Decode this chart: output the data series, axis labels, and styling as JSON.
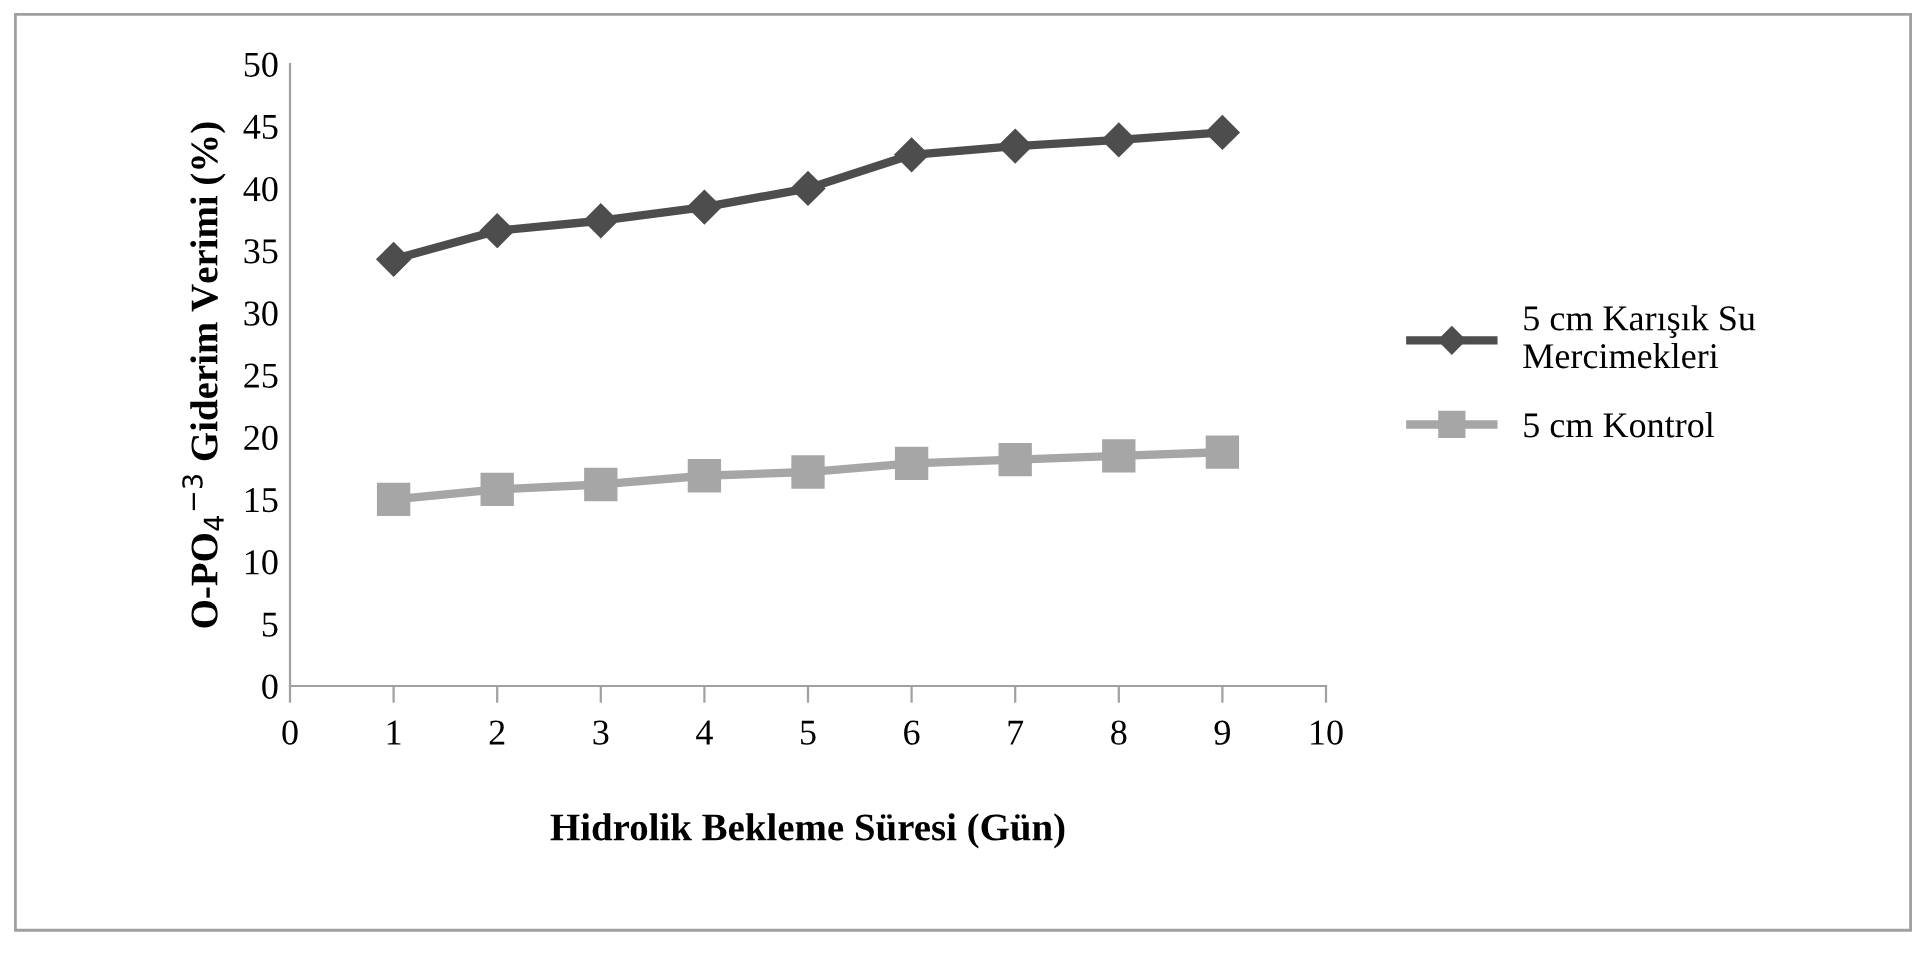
{
  "chart_data": {
    "type": "line",
    "xlabel": "Hidrolik Bekleme Süresi (Gün)",
    "ylabel": "O-PO$_{4}$$^{−3}$ Giderim Verimi (%)",
    "x": [
      1,
      2,
      3,
      4,
      5,
      6,
      7,
      8,
      9
    ],
    "series": [
      {
        "name": "5 cm Karışık Su\nMercimekleri",
        "color": "#4d4d4d",
        "marker": "diamond",
        "values": [
          34.3,
          36.6,
          37.4,
          38.5,
          40.0,
          42.7,
          43.4,
          43.9,
          44.5
        ]
      },
      {
        "name": "5 cm Kontrol",
        "color": "#a6a6a6",
        "marker": "square",
        "values": [
          15.0,
          15.8,
          16.2,
          16.9,
          17.2,
          17.9,
          18.2,
          18.5,
          18.8
        ]
      }
    ],
    "xlim": [
      0,
      10
    ],
    "xticks": [
      0,
      1,
      2,
      3,
      4,
      5,
      6,
      7,
      8,
      9,
      10
    ],
    "ylim": [
      0,
      50
    ],
    "yticks": [
      0,
      5,
      10,
      15,
      20,
      25,
      30,
      35,
      40,
      45,
      50
    ],
    "grid": false,
    "legend": "right",
    "line_style": "solid"
  }
}
